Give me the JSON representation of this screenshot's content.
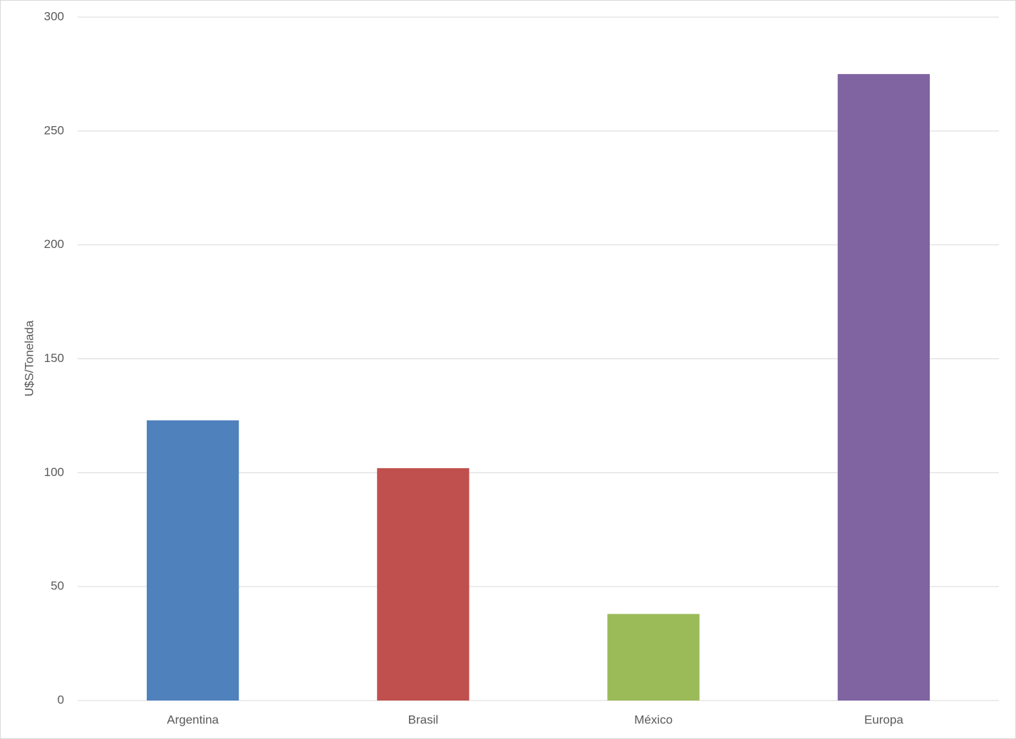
{
  "chart_data": {
    "type": "bar",
    "y_label": "U$S/Tonelada",
    "categories": [
      "Argentina",
      "Brasil",
      "México",
      "Europa"
    ],
    "values": [
      123,
      102,
      38,
      275
    ],
    "colors": [
      "#4f81bd",
      "#c0504d",
      "#9bbb59",
      "#8064a2"
    ],
    "ylim": [
      0,
      300
    ],
    "yticks": [
      0,
      50,
      100,
      150,
      200,
      250,
      300
    ],
    "grid": true
  }
}
